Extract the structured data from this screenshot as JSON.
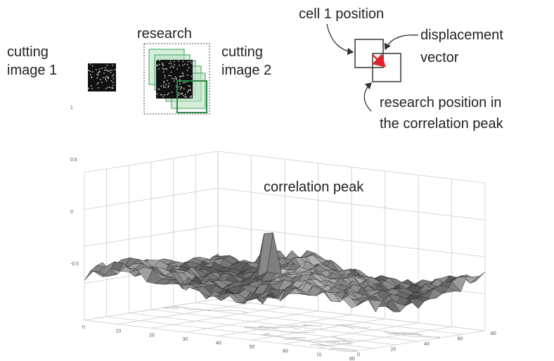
{
  "labels": {
    "cutting_image_1": [
      "cutting",
      "image 1"
    ],
    "research": "research",
    "cutting_image_2": [
      "cutting",
      "image 2"
    ],
    "cell_1_position": "cell 1 position",
    "displacement_vector": [
      "displacement",
      "vector"
    ],
    "research_position": [
      "research position in",
      "the correlation peak"
    ],
    "correlation_peak": "correlation peak"
  },
  "plot": {
    "z_ticks": [
      "1",
      "0.5",
      "0",
      "-0.5"
    ],
    "x_ticks": [
      "0",
      "10",
      "20",
      "30",
      "40",
      "50",
      "60",
      "70",
      "80"
    ],
    "y_ticks": [
      "0",
      "20",
      "40",
      "60",
      "80"
    ]
  }
}
